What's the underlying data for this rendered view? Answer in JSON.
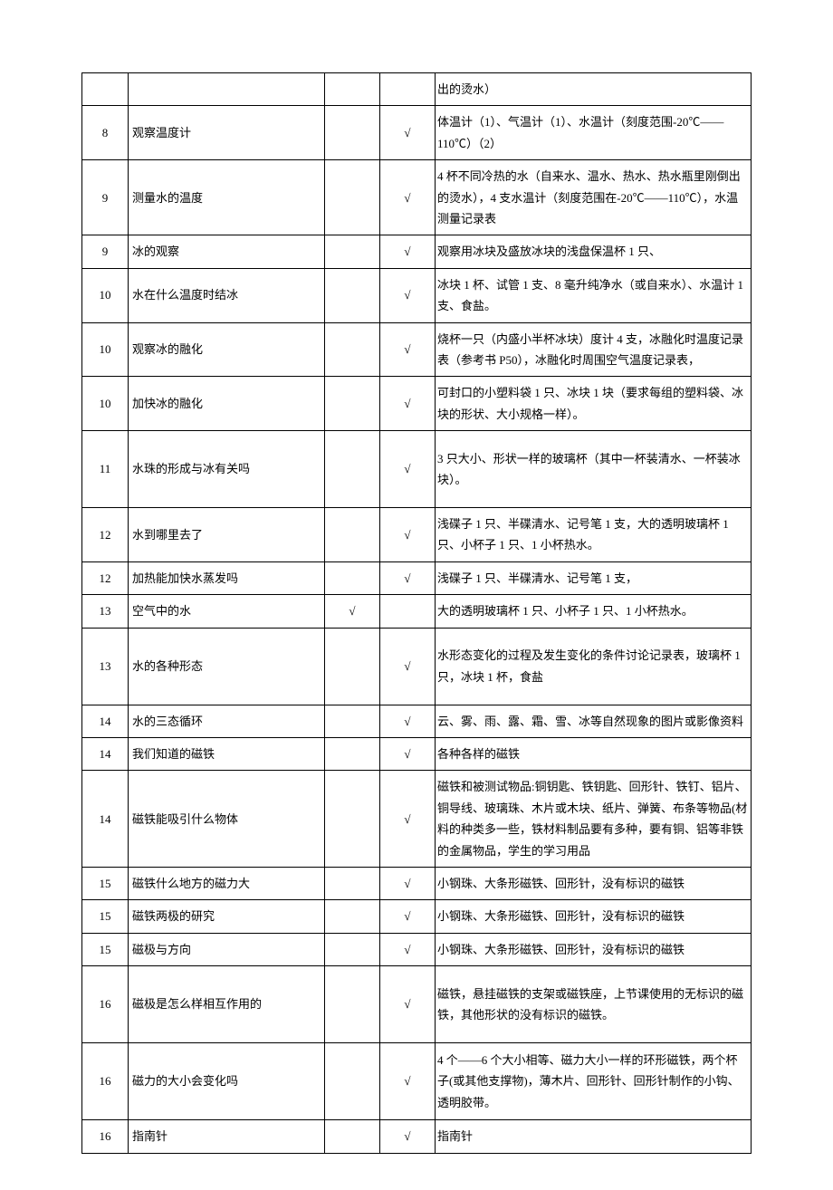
{
  "table": {
    "columns": {
      "num_width": 42,
      "name_width": 208,
      "a_width": 52,
      "b_width": 52
    },
    "check_mark": "√",
    "rows": [
      {
        "num": "",
        "name": "",
        "a": "",
        "b": "",
        "desc": "出的烫水）",
        "tall": false
      },
      {
        "num": "8",
        "name": "观察温度计",
        "a": "",
        "b": "√",
        "desc": "体温计（1）、气温计（1）、水温计（刻度范围-20℃——110℃）（2）",
        "tall": false
      },
      {
        "num": "9",
        "name": "测量水的温度",
        "a": "",
        "b": "√",
        "desc": "4 杯不同冷热的水（自来水、温水、热水、热水瓶里刚倒出的烫水），4 支水温计（刻度范围在-20℃——110℃），水温测量记录表",
        "tall": false
      },
      {
        "num": "9",
        "name": "冰的观察",
        "a": "",
        "b": "√",
        "desc": "观察用冰块及盛放冰块的浅盘保温杯 1 只、",
        "tall": false
      },
      {
        "num": "10",
        "name": "水在什么温度时结冰",
        "a": "",
        "b": "√",
        "desc": "冰块 1 杯、试管 1 支、8 毫升纯净水（或自来水）、水温计 1 支、食盐。",
        "tall": false
      },
      {
        "num": "10",
        "name": "观察冰的融化",
        "a": "",
        "b": "√",
        "desc": "烧杯一只（内盛小半杯冰块）度计 4 支，冰融化时温度记录表（参考书 P50），冰融化时周围空气温度记录表，",
        "tall": false
      },
      {
        "num": "10",
        "name": "加快冰的融化",
        "a": "",
        "b": "√",
        "desc": "可封口的小塑料袋 1 只、冰块 1 块（要求每组的塑料袋、冰块的形状、大小规格一样）。",
        "tall": false
      },
      {
        "num": "11",
        "name": "水珠的形成与冰有关吗",
        "a": "",
        "b": "√",
        "desc": "3 只大小、形状一样的玻璃杯（其中一杯装清水、一杯装冰块）。",
        "tall": true
      },
      {
        "num": "12",
        "name": "水到哪里去了",
        "a": "",
        "b": "√",
        "desc": "浅碟子 1 只、半碟清水、记号笔 1 支，大的透明玻璃杯 1 只、小杯子 1 只、1 小杯热水。",
        "tall": false
      },
      {
        "num": "12",
        "name": "加热能加快水蒸发吗",
        "a": "",
        "b": "√",
        "desc": "浅碟子 1 只、半碟清水、记号笔 1 支，",
        "tall": false
      },
      {
        "num": "13",
        "name": "空气中的水",
        "a": "√",
        "b": "",
        "desc": "大的透明玻璃杯 1 只、小杯子 1 只、1 小杯热水。",
        "tall": false
      },
      {
        "num": "13",
        "name": "水的各种形态",
        "a": "",
        "b": "√",
        "desc": "水形态变化的过程及发生变化的条件讨论记录表，玻璃杯 1 只，冰块 1 杯，食盐",
        "tall": true
      },
      {
        "num": "14",
        "name": "水的三态循环",
        "a": "",
        "b": "√",
        "desc": "云、雾、雨、露、霜、雪、冰等自然现象的图片或影像资料",
        "tall": false
      },
      {
        "num": "14",
        "name": "我们知道的磁铁",
        "a": "",
        "b": "√",
        "desc": "各种各样的磁铁",
        "tall": false
      },
      {
        "num": "14",
        "name": "磁铁能吸引什么物体",
        "a": "",
        "b": "√",
        "desc": "磁铁和被测试物品:铜钥匙、铁钥匙、回形针、铁钉、铝片、铜导线、玻璃珠、木片或木块、纸片、弹簧、布条等物品(材料的种类多一些，铁材料制品要有多种，要有铜、铝等非铁的金属物品，学生的学习用品",
        "tall": false
      },
      {
        "num": "15",
        "name": "磁铁什么地方的磁力大",
        "a": "",
        "b": "√",
        "desc": "小钢珠、大条形磁铁、回形针，没有标识的磁铁",
        "tall": false
      },
      {
        "num": "15",
        "name": "磁铁两极的研究",
        "a": "",
        "b": "√",
        "desc": "小钢珠、大条形磁铁、回形针，没有标识的磁铁",
        "tall": false
      },
      {
        "num": "15",
        "name": "磁极与方向",
        "a": "",
        "b": "√",
        "desc": "小钢珠、大条形磁铁、回形针，没有标识的磁铁",
        "tall": false
      },
      {
        "num": "16",
        "name": "磁极是怎么样相互作用的",
        "a": "",
        "b": "√",
        "desc": "磁铁，悬挂磁铁的支架或磁铁座，上节课使用的无标识的磁铁，其他形状的没有标识的磁铁。",
        "tall": true
      },
      {
        "num": "16",
        "name": "磁力的大小会变化吗",
        "a": "",
        "b": "√",
        "desc": "4 个——6 个大小相等、磁力大小一样的环形磁铁，两个杯子(或其他支撑物)，薄木片、回形针、回形针制作的小钩、透明胶带。",
        "tall": true
      },
      {
        "num": "16",
        "name": "指南针",
        "a": "",
        "b": "√",
        "desc": "指南针",
        "tall": false
      }
    ]
  }
}
